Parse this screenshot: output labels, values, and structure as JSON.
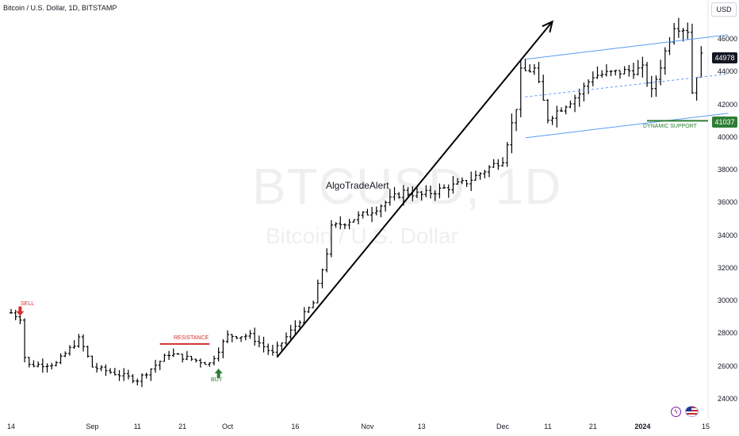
{
  "header": {
    "title": "Bitcoin / U.S. Dollar, 1D, BITSTAMP",
    "currency_button": "USD"
  },
  "watermark": {
    "symbol": "BTCUSD, 1D",
    "name": "Bitcoin / U.S. Dollar"
  },
  "annotations": {
    "main_text": "AlgoTradeAlert",
    "sell": "SELL",
    "resistance": "RESISTANCE",
    "buy": "BUY",
    "dynamic_support": "DYNAMIC SUPPORT"
  },
  "price_tags": {
    "last": "44978",
    "support": "41037"
  },
  "colors": {
    "bars": "#000000",
    "sell": "#d32f2f",
    "resistance": "#d32f2f",
    "buy": "#2e7d32",
    "support": "#2e7d32",
    "channel": "#5b9cf2",
    "arrow": "#000000"
  },
  "icons": {
    "flash": "lightning-icon",
    "flag": "us-flag-icon"
  },
  "chart_data": {
    "type": "ohlc",
    "title": "Bitcoin / U.S. Dollar, 1D, BITSTAMP",
    "y_axis": {
      "ticks": [
        24000,
        26000,
        28000,
        30000,
        32000,
        34000,
        36000,
        38000,
        40000,
        42000,
        44000,
        46000
      ],
      "range": [
        23200,
        47000
      ],
      "position": "right"
    },
    "x_axis": {
      "ticks": [
        {
          "label": "14",
          "date": "2023-08-14"
        },
        {
          "label": "Sep",
          "date": "2023-09-01"
        },
        {
          "label": "11",
          "date": "2023-09-11"
        },
        {
          "label": "21",
          "date": "2023-09-21"
        },
        {
          "label": "Oct",
          "date": "2023-10-01"
        },
        {
          "label": "16",
          "date": "2023-10-16"
        },
        {
          "label": "Nov",
          "date": "2023-11-01"
        },
        {
          "label": "13",
          "date": "2023-11-13"
        },
        {
          "label": "Dec",
          "date": "2023-12-01"
        },
        {
          "label": "11",
          "date": "2023-12-11"
        },
        {
          "label": "21",
          "date": "2023-12-21"
        },
        {
          "label": "2024",
          "date": "2024-01-01",
          "bold": true
        },
        {
          "label": "15",
          "date": "2024-01-15"
        }
      ]
    },
    "ohlc_points": [
      {
        "date": "2023-08-14",
        "close": 29300
      },
      {
        "date": "2023-08-16",
        "close": 29000
      },
      {
        "date": "2023-08-17",
        "close": 26600
      },
      {
        "date": "2023-08-18",
        "close": 26100
      },
      {
        "date": "2023-08-24",
        "close": 26200
      },
      {
        "date": "2023-08-29",
        "close": 27700
      },
      {
        "date": "2023-08-30",
        "close": 27200
      },
      {
        "date": "2023-09-01",
        "close": 26000
      },
      {
        "date": "2023-09-11",
        "close": 25200
      },
      {
        "date": "2023-09-18",
        "close": 26800
      },
      {
        "date": "2023-09-21",
        "close": 26600
      },
      {
        "date": "2023-09-27",
        "close": 26200
      },
      {
        "date": "2023-10-01",
        "close": 27900
      },
      {
        "date": "2023-10-06",
        "close": 27900
      },
      {
        "date": "2023-10-11",
        "close": 26800
      },
      {
        "date": "2023-10-16",
        "close": 28500
      },
      {
        "date": "2023-10-20",
        "close": 29900
      },
      {
        "date": "2023-10-23",
        "close": 33000
      },
      {
        "date": "2023-10-24",
        "close": 34500
      },
      {
        "date": "2023-11-01",
        "close": 35400
      },
      {
        "date": "2023-11-09",
        "close": 36700
      },
      {
        "date": "2023-11-13",
        "close": 36500
      },
      {
        "date": "2023-11-23",
        "close": 37300
      },
      {
        "date": "2023-12-01",
        "close": 38700
      },
      {
        "date": "2023-12-04",
        "close": 41900
      },
      {
        "date": "2023-12-05",
        "close": 44000
      },
      {
        "date": "2023-12-08",
        "close": 44200
      },
      {
        "date": "2023-12-11",
        "close": 41200
      },
      {
        "date": "2023-12-18",
        "close": 42700
      },
      {
        "date": "2023-12-21",
        "close": 43800
      },
      {
        "date": "2024-01-01",
        "close": 44200
      },
      {
        "date": "2024-01-03",
        "close": 42800
      },
      {
        "date": "2024-01-08",
        "close": 46900
      },
      {
        "date": "2024-01-11",
        "close": 46600
      },
      {
        "date": "2024-01-12",
        "close": 42800
      },
      {
        "date": "2024-01-14",
        "close": 44978
      }
    ],
    "drawings": {
      "resistance_level": 27400,
      "dynamic_support": 41037,
      "last_price": 44978,
      "trend_arrow": {
        "start": {
          "date": "2023-10-12",
          "price": 26600
        },
        "end": {
          "date": "2023-12-12",
          "price": 47100
        }
      },
      "channel": {
        "start": "2023-12-06",
        "end": "2024-01-20",
        "upper": [
          44800,
          46300
        ],
        "middle": [
          42500,
          43900
        ],
        "lower": [
          40000,
          41500
        ]
      }
    }
  }
}
